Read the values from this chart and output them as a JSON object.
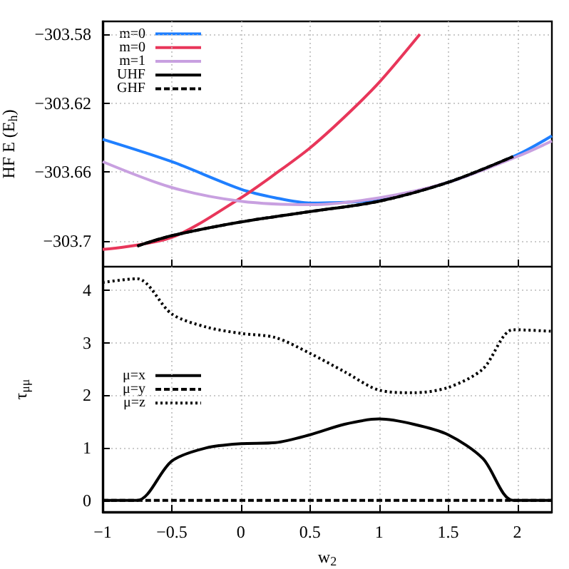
{
  "chart_data": [
    {
      "type": "line",
      "ylabel": "HF E (E$_{h}$)",
      "xlim": [
        -1,
        2.25
      ],
      "ylim": [
        -303.715,
        -303.5725
      ],
      "xticks": [
        {
          "value": -1,
          "label": null
        },
        {
          "value": -0.5,
          "label": null
        },
        {
          "value": 0,
          "label": null
        },
        {
          "value": 0.5,
          "label": null
        },
        {
          "value": 1,
          "label": null
        },
        {
          "value": 1.5,
          "label": null
        },
        {
          "value": 2,
          "label": null
        }
      ],
      "yticks": [
        {
          "value": -303.7,
          "label": "−303.7"
        },
        {
          "value": -303.66,
          "label": "−303.66"
        },
        {
          "value": -303.62,
          "label": "−303.62"
        },
        {
          "value": -303.58,
          "label": "−303.58"
        }
      ],
      "tick_labels": "y",
      "grid": true,
      "legend": "top left",
      "marker": "none",
      "series": [
        {
          "name": "m=0",
          "color": "#1f7fff",
          "line_style": "solid",
          "x": [
            -1,
            -0.5,
            0,
            0.25,
            0.5,
            1,
            1.5,
            2,
            2.25
          ],
          "values": [
            -303.641,
            -303.654,
            -303.67,
            -303.675,
            -303.678,
            -303.676,
            -303.666,
            -303.65,
            -303.639
          ]
        },
        {
          "name": "m=0",
          "color": "#e8365a",
          "line_style": "solid",
          "x": [
            -1,
            -0.5,
            0,
            0.25,
            0.5,
            0.75,
            1,
            1.295
          ],
          "values": [
            -303.705,
            -303.698,
            -303.675,
            -303.661,
            -303.646,
            -303.628,
            -303.608,
            -303.58
          ]
        },
        {
          "name": "m=1",
          "color": "#c8a0e0",
          "line_style": "solid",
          "x": [
            -1,
            -0.5,
            0,
            0.5,
            1,
            1.5,
            2,
            2.25
          ],
          "values": [
            -303.654,
            -303.669,
            -303.677,
            -303.679,
            -303.675,
            -303.666,
            -303.651,
            -303.642
          ]
        },
        {
          "name": "UHF",
          "color": "#000000",
          "line_style": "solid",
          "x": [
            -0.75,
            -0.5,
            0,
            0.5,
            1,
            1.5,
            1.97
          ],
          "values": [
            -303.703,
            -303.697,
            -303.689,
            -303.683,
            -303.677,
            -303.666,
            -303.651
          ]
        },
        {
          "name": "GHF",
          "color": "#000000",
          "line_style": "dashed",
          "x": [
            -0.75,
            -0.5,
            0,
            0.5,
            1,
            1.5,
            1.97
          ],
          "values": [
            -303.703,
            -303.697,
            -303.689,
            -303.683,
            -303.677,
            -303.666,
            -303.651
          ]
        }
      ]
    },
    {
      "type": "line",
      "xlabel": "w$_{2}$",
      "ylabel": "τ$_{μμ}$",
      "xlim": [
        -1,
        2.25
      ],
      "ylim": [
        -0.22,
        4.45
      ],
      "xticks": [
        {
          "value": -1,
          "label": "−1"
        },
        {
          "value": -0.5,
          "label": "−0.5"
        },
        0,
        0.5,
        1,
        1.5,
        2
      ],
      "yticks": [
        0,
        1,
        2,
        3,
        4
      ],
      "grid": true,
      "legend": "center left",
      "marker": "none",
      "series": [
        {
          "name": "μ=x",
          "color": "#000000",
          "line_style": "solid",
          "x": [
            -1,
            -0.75,
            -0.5,
            -0.25,
            0,
            0.25,
            0.5,
            0.75,
            1,
            1.25,
            1.5,
            1.75,
            1.97,
            2.25
          ],
          "values": [
            0,
            0,
            0.75,
            1.0,
            1.08,
            1.1,
            1.25,
            1.45,
            1.55,
            1.45,
            1.25,
            0.8,
            0,
            0
          ]
        },
        {
          "name": "μ=y",
          "color": "#000000",
          "line_style": "dashed",
          "x": [
            -1,
            2.25
          ],
          "values": [
            0,
            0
          ]
        },
        {
          "name": "μ=z",
          "color": "#000000",
          "line_style": "dotted",
          "x": [
            -1,
            -0.75,
            -0.5,
            -0.25,
            0,
            0.25,
            0.5,
            0.75,
            1,
            1.25,
            1.5,
            1.75,
            1.97,
            2.25
          ],
          "values": [
            4.15,
            4.22,
            3.55,
            3.3,
            3.18,
            3.1,
            2.8,
            2.45,
            2.1,
            2.05,
            2.15,
            2.5,
            3.25,
            3.22
          ]
        }
      ]
    }
  ]
}
